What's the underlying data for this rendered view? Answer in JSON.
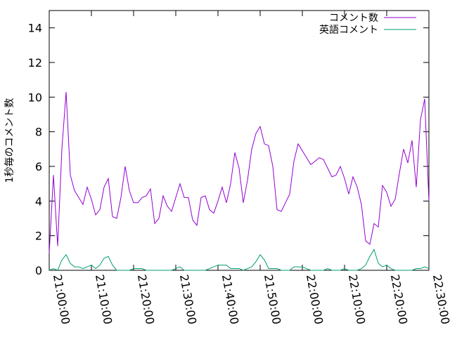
{
  "chart_data": {
    "type": "line",
    "ylabel": "1秒毎のコメント数",
    "x": [
      "21:00:00",
      "21:01:00",
      "21:02:00",
      "21:03:00",
      "21:04:00",
      "21:05:00",
      "21:06:00",
      "21:07:00",
      "21:08:00",
      "21:09:00",
      "21:10:00",
      "21:11:00",
      "21:12:00",
      "21:13:00",
      "21:14:00",
      "21:15:00",
      "21:16:00",
      "21:17:00",
      "21:18:00",
      "21:19:00",
      "21:20:00",
      "21:21:00",
      "21:22:00",
      "21:23:00",
      "21:24:00",
      "21:25:00",
      "21:26:00",
      "21:27:00",
      "21:28:00",
      "21:29:00",
      "21:30:00",
      "21:31:00",
      "21:32:00",
      "21:33:00",
      "21:34:00",
      "21:35:00",
      "21:36:00",
      "21:37:00",
      "21:38:00",
      "21:39:00",
      "21:40:00",
      "21:41:00",
      "21:42:00",
      "21:43:00",
      "21:44:00",
      "21:45:00",
      "21:46:00",
      "21:47:00",
      "21:48:00",
      "21:49:00",
      "21:50:00",
      "21:51:00",
      "21:52:00",
      "21:53:00",
      "21:54:00",
      "21:55:00",
      "21:56:00",
      "21:57:00",
      "21:58:00",
      "21:59:00",
      "22:00:00",
      "22:01:00",
      "22:02:00",
      "22:03:00",
      "22:04:00",
      "22:05:00",
      "22:06:00",
      "22:07:00",
      "22:08:00",
      "22:09:00",
      "22:10:00",
      "22:11:00",
      "22:12:00",
      "22:13:00",
      "22:14:00",
      "22:15:00",
      "22:16:00",
      "22:17:00",
      "22:18:00",
      "22:19:00",
      "22:20:00",
      "22:21:00",
      "22:22:00",
      "22:23:00",
      "22:24:00",
      "22:25:00",
      "22:26:00",
      "22:27:00",
      "22:28:00",
      "22:29:00",
      "22:30:00"
    ],
    "series": [
      {
        "name": "コメント数",
        "color": "#9400d3",
        "values": [
          1.0,
          5.5,
          1.4,
          7.0,
          10.3,
          5.5,
          4.6,
          4.2,
          3.8,
          4.8,
          4.1,
          3.2,
          3.5,
          4.8,
          5.3,
          3.1,
          3.0,
          4.2,
          6.0,
          4.6,
          3.9,
          3.9,
          4.2,
          4.3,
          4.7,
          2.7,
          3.0,
          4.3,
          3.7,
          3.4,
          4.2,
          5.0,
          4.2,
          4.2,
          2.9,
          2.6,
          4.2,
          4.3,
          3.5,
          3.3,
          4.0,
          4.8,
          3.9,
          5.0,
          6.8,
          5.9,
          3.9,
          5.2,
          7.0,
          7.9,
          8.3,
          7.3,
          7.2,
          6.0,
          3.5,
          3.4,
          3.9,
          4.4,
          6.3,
          7.3,
          6.9,
          6.5,
          6.1,
          6.3,
          6.5,
          6.4,
          5.9,
          5.4,
          5.5,
          6.0,
          5.3,
          4.4,
          5.4,
          4.8,
          3.8,
          1.7,
          1.5,
          2.7,
          2.5,
          4.9,
          4.5,
          3.7,
          4.1,
          5.6,
          7.0,
          6.2,
          7.5,
          4.8,
          8.7,
          9.9,
          4.0
        ]
      },
      {
        "name": "英語コメント",
        "color": "#009e73",
        "values": [
          0,
          0.1,
          0,
          0.6,
          0.9,
          0.4,
          0.2,
          0.2,
          0.1,
          0.2,
          0.3,
          0.1,
          0.3,
          0.7,
          0.8,
          0.3,
          0,
          0,
          0,
          0,
          0.1,
          0.1,
          0.1,
          0,
          0,
          0,
          0,
          0,
          0,
          0,
          0.1,
          0.2,
          0,
          0,
          0,
          0,
          0,
          0,
          0.1,
          0.2,
          0.3,
          0.3,
          0.3,
          0.1,
          0.1,
          0.1,
          0,
          0.1,
          0.2,
          0.5,
          0.9,
          0.6,
          0.1,
          0.1,
          0.1,
          0,
          0,
          0,
          0.2,
          0.2,
          0.2,
          0.1,
          0,
          0,
          0,
          0,
          0.1,
          0,
          0,
          0,
          0.1,
          0,
          0,
          0,
          0.1,
          0.3,
          0.8,
          1.2,
          0.4,
          0.2,
          0.3,
          0.1,
          0,
          0,
          0,
          0,
          0,
          0.1,
          0.1,
          0.2,
          0.1
        ]
      }
    ],
    "xlim": [
      "21:00:00",
      "22:30:00"
    ],
    "xticks": [
      "21:00:00",
      "21:10:00",
      "21:20:00",
      "21:30:00",
      "21:40:00",
      "21:50:00",
      "22:00:00",
      "22:10:00",
      "22:20:00",
      "22:30:00"
    ],
    "ylim": [
      0,
      15
    ],
    "yticks": [
      0,
      2,
      4,
      6,
      8,
      10,
      12,
      14
    ],
    "legend": "top-right"
  }
}
